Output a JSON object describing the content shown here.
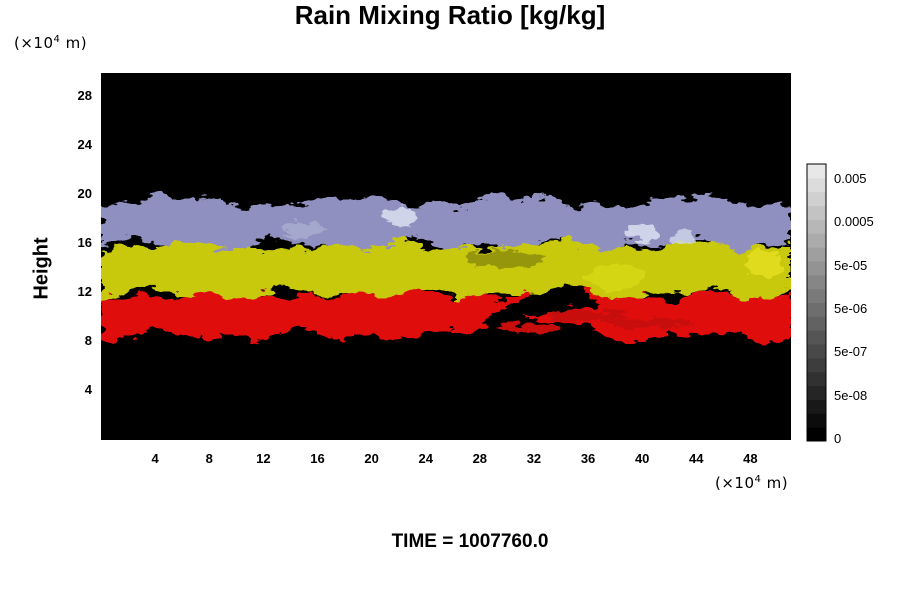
{
  "chart_data": {
    "type": "heatmap",
    "title": "Rain Mixing Ratio [kg/kg]",
    "ylabel": "Height",
    "x_unit": {
      "prefix": "(×10",
      "exp": "4",
      "suffix": " m)"
    },
    "y_unit": {
      "prefix": "(×10",
      "exp": "4",
      "suffix": " m)"
    },
    "x_ticks": [
      "4",
      "8",
      "12",
      "16",
      "20",
      "24",
      "28",
      "32",
      "36",
      "40",
      "44",
      "48"
    ],
    "y_ticks": [
      "4",
      "8",
      "12",
      "16",
      "20",
      "24",
      "28"
    ],
    "xlim": [
      0,
      51
    ],
    "ylim": [
      0,
      30
    ],
    "colorbar": {
      "labels": [
        "0.005",
        "0.0005",
        "5e-05",
        "5e-06",
        "5e-07",
        "5e-08",
        "0"
      ],
      "levels": 20
    },
    "layers": [
      {
        "color": "#e01010",
        "y_range": [
          8.5,
          12
        ]
      },
      {
        "color": "#c8c810",
        "y_range": [
          12,
          16
        ]
      },
      {
        "color": "#9090c0",
        "y_range": [
          16,
          19.5
        ]
      }
    ],
    "footer": "TIME = 1007760.0"
  }
}
